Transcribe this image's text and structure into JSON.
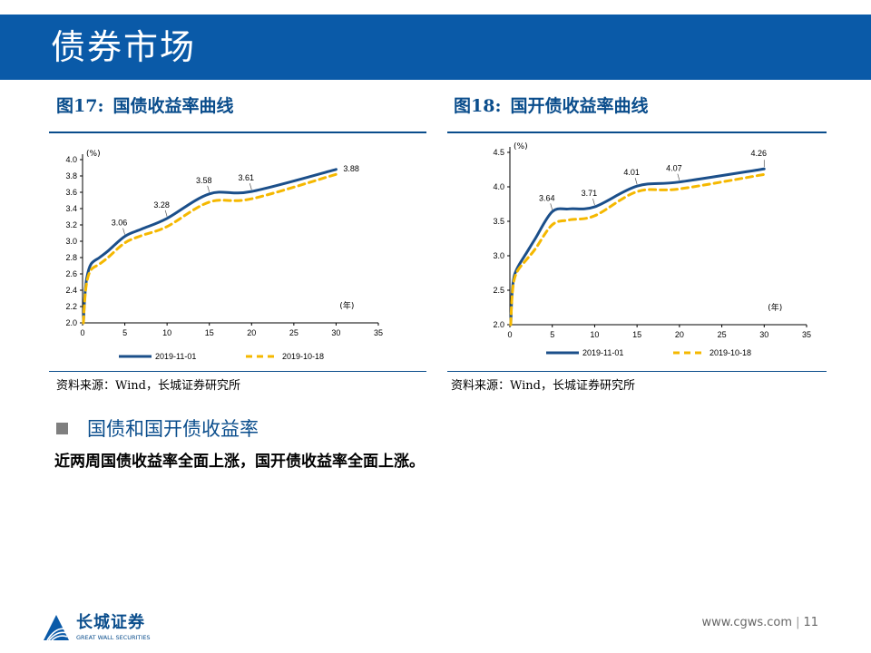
{
  "header": {
    "title": "债券市场"
  },
  "figures": [
    {
      "label": "图17:",
      "title": "国债收益率曲线",
      "source": "资料来源：Wind，长城证券研究所"
    },
    {
      "label": "图18:",
      "title": "国开债收益率曲线",
      "source": "资料来源：Wind，长城证券研究所"
    }
  ],
  "section": {
    "heading": "国债和国开债收益率",
    "body": "近两周国债收益率全面上涨，国开债收益率全面上涨。"
  },
  "footer": {
    "logo_cn": "长城证券",
    "logo_en": "GREAT WALL SECURITIES",
    "url": "www.cgws.com",
    "page": "11"
  },
  "colors": {
    "series1": "#1b4f8a",
    "series2": "#f5b800",
    "brand": "#0a5aa8"
  },
  "chart_data": [
    {
      "type": "line",
      "y_unit": "(%)",
      "x_unit": "(年)",
      "xlim": [
        0,
        35
      ],
      "ylim": [
        2.0,
        4.0
      ],
      "x_ticks": [
        0,
        5,
        10,
        15,
        20,
        25,
        30,
        35
      ],
      "y_ticks": [
        2.0,
        2.2,
        2.4,
        2.6,
        2.8,
        3.0,
        3.2,
        3.4,
        3.6,
        3.8,
        4.0
      ],
      "legend_position": "bottom",
      "series": [
        {
          "name": "2019-11-01",
          "x": [
            0.1,
            0.25,
            0.5,
            1,
            2,
            3,
            5,
            7,
            10,
            15,
            20,
            30
          ],
          "values": [
            2.0,
            2.3,
            2.55,
            2.72,
            2.8,
            2.88,
            3.06,
            3.15,
            3.28,
            3.58,
            3.61,
            3.88
          ]
        },
        {
          "name": "2019-10-18",
          "x": [
            0.1,
            0.25,
            0.5,
            1,
            2,
            3,
            5,
            7,
            10,
            15,
            20,
            30
          ],
          "values": [
            2.0,
            2.27,
            2.5,
            2.65,
            2.72,
            2.8,
            2.98,
            3.07,
            3.18,
            3.48,
            3.52,
            3.82
          ]
        }
      ],
      "annotations": [
        {
          "x": 5,
          "y": 3.06,
          "text": "3.06"
        },
        {
          "x": 10,
          "y": 3.28,
          "text": "3.28"
        },
        {
          "x": 15,
          "y": 3.58,
          "text": "3.58"
        },
        {
          "x": 20,
          "y": 3.61,
          "text": "3.61"
        },
        {
          "x": 30,
          "y": 3.88,
          "text": "3.88"
        }
      ]
    },
    {
      "type": "line",
      "y_unit": "(%)",
      "x_unit": "(年)",
      "xlim": [
        0,
        35
      ],
      "ylim": [
        2.0,
        4.5
      ],
      "x_ticks": [
        0,
        5,
        10,
        15,
        20,
        25,
        30,
        35
      ],
      "y_ticks": [
        2.0,
        2.5,
        3.0,
        3.5,
        4.0,
        4.5
      ],
      "legend_position": "bottom",
      "series": [
        {
          "name": "2019-11-01",
          "x": [
            0.1,
            0.25,
            0.5,
            1,
            2,
            3,
            5,
            7,
            10,
            15,
            20,
            30
          ],
          "values": [
            2.0,
            2.45,
            2.7,
            2.85,
            3.05,
            3.25,
            3.64,
            3.68,
            3.71,
            4.01,
            4.07,
            4.26
          ]
        },
        {
          "name": "2019-10-18",
          "x": [
            0.1,
            0.25,
            0.5,
            1,
            2,
            3,
            5,
            7,
            10,
            15,
            20,
            30
          ],
          "values": [
            2.0,
            2.4,
            2.65,
            2.8,
            2.95,
            3.1,
            3.45,
            3.52,
            3.58,
            3.93,
            3.97,
            4.18
          ]
        }
      ],
      "annotations": [
        {
          "x": 5,
          "y": 3.64,
          "text": "3.64"
        },
        {
          "x": 10,
          "y": 3.71,
          "text": "3.71"
        },
        {
          "x": 15,
          "y": 4.01,
          "text": "4.01"
        },
        {
          "x": 20,
          "y": 4.07,
          "text": "4.07"
        },
        {
          "x": 30,
          "y": 4.26,
          "text": "4.26"
        }
      ]
    }
  ]
}
